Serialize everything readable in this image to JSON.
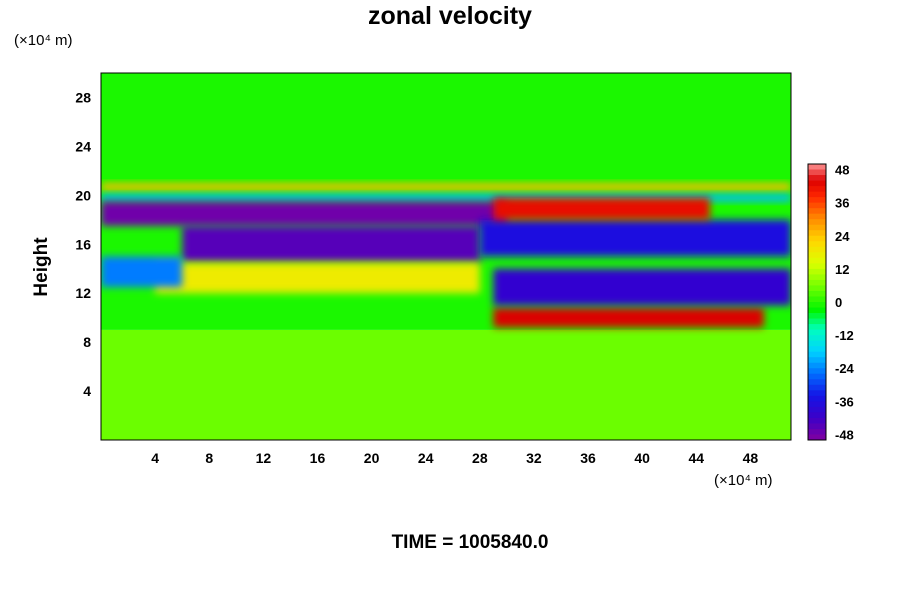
{
  "chart_data": {
    "type": "heatmap",
    "title": "zonal velocity",
    "ylabel": "Height",
    "xlabel": "",
    "x_unit": "(×10⁴ m)",
    "y_unit": "(×10⁴ m)",
    "footer": "TIME = 1005840.0",
    "xlim": [
      0,
      51
    ],
    "ylim": [
      0,
      30
    ],
    "xticks": [
      4,
      8,
      12,
      16,
      20,
      24,
      28,
      32,
      36,
      40,
      44,
      48
    ],
    "yticks": [
      4,
      8,
      12,
      16,
      20,
      24,
      28
    ],
    "colorbar": {
      "range": [
        -50,
        50
      ],
      "ticks": [
        48,
        36,
        24,
        12,
        0,
        -12,
        -24,
        -36,
        -48
      ],
      "placement": "right"
    },
    "features": [
      {
        "x": [
          0,
          51
        ],
        "y": [
          0,
          9
        ],
        "value": 5
      },
      {
        "x": [
          0,
          51
        ],
        "y": [
          9,
          30
        ],
        "value": -1
      },
      {
        "x": [
          0,
          51
        ],
        "y": [
          20.4,
          21
        ],
        "value": 25
      },
      {
        "x": [
          0,
          51
        ],
        "y": [
          19.5,
          20.1
        ],
        "value": -20
      },
      {
        "x": [
          0,
          30
        ],
        "y": [
          17.5,
          19.5
        ],
        "value": -48
      },
      {
        "x": [
          6,
          28
        ],
        "y": [
          14.5,
          17.5
        ],
        "value": -45
      },
      {
        "x": [
          28,
          51
        ],
        "y": [
          15,
          18
        ],
        "value": -36
      },
      {
        "x": [
          29,
          45
        ],
        "y": [
          18,
          19.8
        ],
        "value": 42
      },
      {
        "x": [
          29,
          49
        ],
        "y": [
          9.2,
          10.8
        ],
        "value": 44
      },
      {
        "x": [
          29,
          51
        ],
        "y": [
          11,
          14
        ],
        "value": -40
      },
      {
        "x": [
          4,
          28
        ],
        "y": [
          12,
          14.5
        ],
        "value": 18
      },
      {
        "x": [
          0,
          6
        ],
        "y": [
          12.5,
          15
        ],
        "value": -25
      }
    ]
  }
}
